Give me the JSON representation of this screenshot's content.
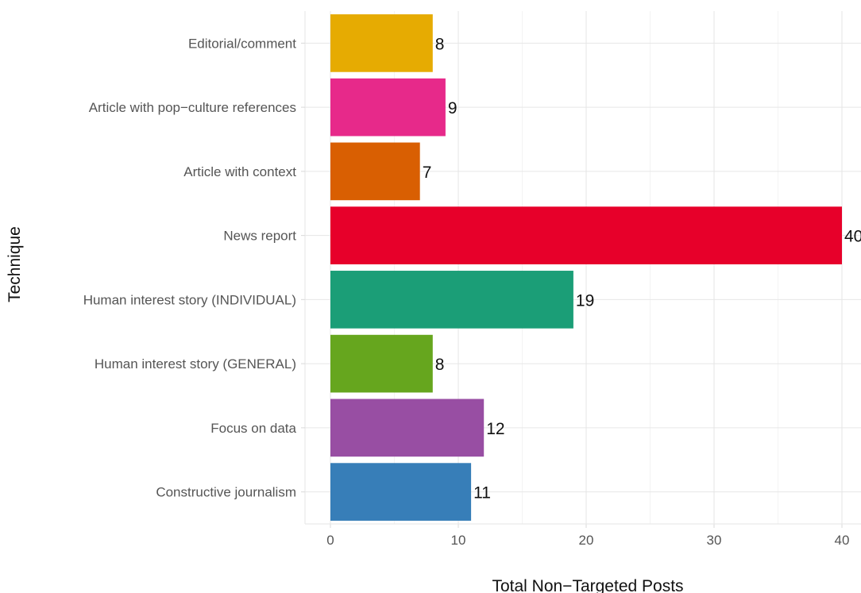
{
  "chart_data": {
    "type": "bar",
    "orientation": "horizontal",
    "categories": [
      "Editorial/comment",
      "Article with pop−culture references",
      "Article with context",
      "News report",
      "Human interest story (INDIVIDUAL)",
      "Human interest story (GENERAL)",
      "Focus on data",
      "Constructive journalism"
    ],
    "values": [
      8,
      9,
      7,
      40,
      19,
      8,
      12,
      11
    ],
    "colors": [
      "#E6AB02",
      "#E7298A",
      "#D95F02",
      "#E7002A",
      "#1B9E77",
      "#66A61E",
      "#984EA3",
      "#377EB8"
    ],
    "xlabel": "Total Non−Targeted Posts",
    "ylabel": "Technique",
    "xlim": [
      -2,
      41.5
    ],
    "xticks": [
      0,
      10,
      20,
      30,
      40
    ],
    "grid": true,
    "legend": "none"
  }
}
